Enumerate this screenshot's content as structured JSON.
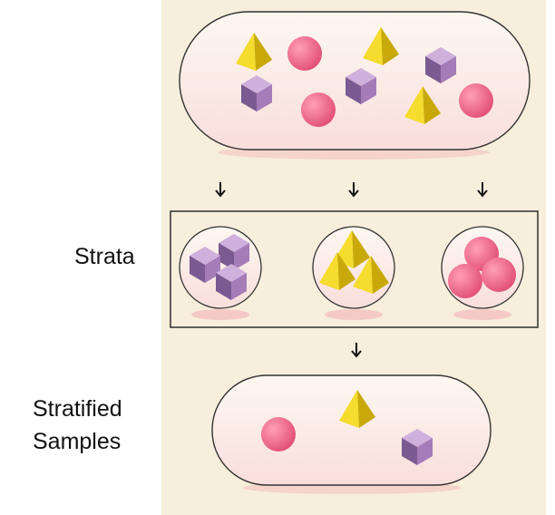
{
  "labels": {
    "strata": "Strata",
    "stratified_line1": "Stratified",
    "stratified_line2": "Samples"
  },
  "icons": [
    "cube",
    "pyramid",
    "sphere",
    "down-arrow"
  ],
  "colors": {
    "background": "#f7eedb",
    "capsule_fill": "#fdf6ee",
    "capsule_shadow": "#f4c9c6",
    "cube": "#b68fc6",
    "cube_dark": "#5e4470",
    "pyramid": "#f2d21a",
    "pyramid_dark": "#b89a05",
    "sphere": "#f06a8c"
  }
}
